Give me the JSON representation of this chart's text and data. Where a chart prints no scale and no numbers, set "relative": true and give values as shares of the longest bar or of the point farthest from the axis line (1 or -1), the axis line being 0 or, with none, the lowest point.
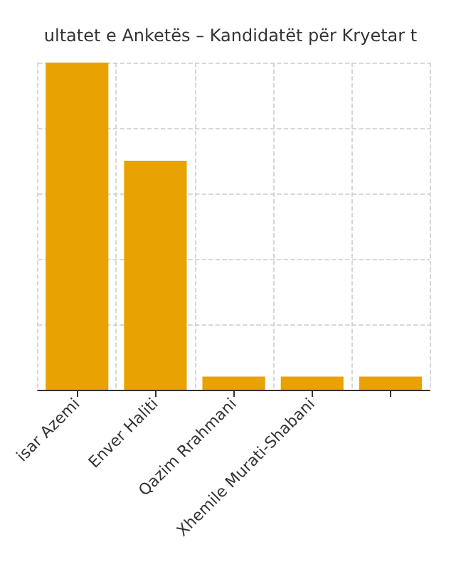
{
  "chart_data": {
    "type": "bar",
    "title": "ultatet e Anketës – Kandidatët për Kryetar t",
    "categories": [
      "isar Azemi",
      "Enver Haliti",
      "Qazim Rrahmani",
      "Xhemile Murati-Shabani",
      null
    ],
    "values": [
      1,
      0.7,
      0.04,
      0.04,
      0.04
    ],
    "color": "#e8a202",
    "relative": true,
    "grid": true
  }
}
